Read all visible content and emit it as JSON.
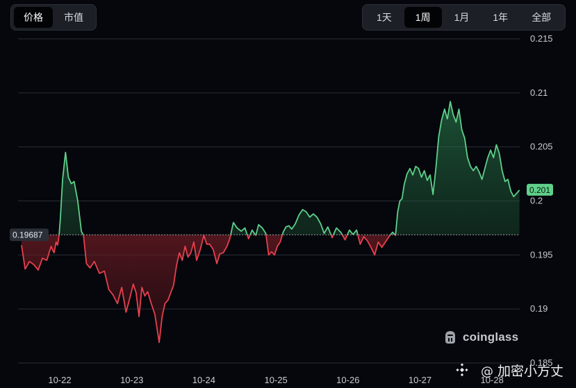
{
  "tabs_metric": [
    {
      "label": "价格",
      "active": true
    },
    {
      "label": "市值",
      "active": false
    }
  ],
  "tabs_range": [
    {
      "label": "1天",
      "active": false
    },
    {
      "label": "1周",
      "active": true
    },
    {
      "label": "1月",
      "active": false
    },
    {
      "label": "1年",
      "active": false
    },
    {
      "label": "全部",
      "active": false
    }
  ],
  "brand": {
    "name": "coinglass"
  },
  "watermark": {
    "at": "@",
    "text": "加密小方丈"
  },
  "colors": {
    "up": "#5fd08a",
    "down": "#e8404e",
    "background": "#05070c",
    "grid": "#2a2e36"
  },
  "chart_data": {
    "type": "area",
    "title": "",
    "xlabel": "",
    "ylabel": "",
    "ylim": [
      0.185,
      0.215
    ],
    "yticks": [
      0.185,
      0.19,
      0.195,
      0.2,
      0.205,
      0.21,
      0.215
    ],
    "ytick_labels": [
      "0.185",
      "0.19",
      "0.195",
      "0.2",
      "0.205",
      "0.21",
      "0.215"
    ],
    "xlim": [
      -0.5,
      6.5
    ],
    "xticks": [
      0,
      1,
      2,
      3,
      4,
      5,
      6
    ],
    "xtick_labels": [
      "10-22",
      "10-23",
      "10-24",
      "10-25",
      "10-26",
      "10-27",
      "10-28"
    ],
    "baseline": 0.19687,
    "baseline_label": "0.19687",
    "last_value": 0.201,
    "last_label": "0.201",
    "grid": true,
    "series": [
      {
        "x": [
          -0.53,
          -0.48,
          -0.42,
          -0.36,
          -0.3,
          -0.24,
          -0.18,
          -0.12,
          -0.08,
          -0.05,
          -0.03,
          -0.01,
          0.01,
          0.04,
          0.08,
          0.12,
          0.16,
          0.2,
          0.25,
          0.3,
          0.33,
          0.37,
          0.42,
          0.48,
          0.55,
          0.62,
          0.68,
          0.74,
          0.8,
          0.86,
          0.92,
          0.98,
          1.02,
          1.06,
          1.1,
          1.14,
          1.18,
          1.22,
          1.27,
          1.32,
          1.38,
          1.42,
          1.46,
          1.5,
          1.54,
          1.58,
          1.62,
          1.66,
          1.7,
          1.74,
          1.78,
          1.82,
          1.86,
          1.9,
          1.95,
          2.0,
          2.04,
          2.08,
          2.13,
          2.18,
          2.22,
          2.27,
          2.32,
          2.36,
          2.41,
          2.46,
          2.52,
          2.57,
          2.62,
          2.67,
          2.72,
          2.76,
          2.81,
          2.86,
          2.9,
          2.94,
          2.98,
          3.02,
          3.06,
          3.1,
          3.14,
          3.18,
          3.22,
          3.27,
          3.32,
          3.37,
          3.42,
          3.47,
          3.52,
          3.57,
          3.62,
          3.67,
          3.72,
          3.78,
          3.84,
          3.9,
          3.96,
          4.02,
          4.07,
          4.12,
          4.17,
          4.22,
          4.27,
          4.32,
          4.37,
          4.42,
          4.47,
          4.52,
          4.57,
          4.62,
          4.66,
          4.69,
          4.72,
          4.75,
          4.78,
          4.82,
          4.86,
          4.9,
          4.94,
          4.98,
          5.02,
          5.06,
          5.1,
          5.14,
          5.18,
          5.22,
          5.26,
          5.3,
          5.34,
          5.38,
          5.42,
          5.46,
          5.5,
          5.54,
          5.58,
          5.62,
          5.66,
          5.7,
          5.74,
          5.78,
          5.82,
          5.86,
          5.9,
          5.94,
          5.98,
          6.02,
          6.06,
          6.1,
          6.14,
          6.18,
          6.22,
          6.26,
          6.3,
          6.34,
          6.38
        ],
        "values": [
          0.1959,
          0.1937,
          0.1944,
          0.1941,
          0.1936,
          0.1947,
          0.1945,
          0.1958,
          0.1952,
          0.1962,
          0.1959,
          0.1968,
          0.1985,
          0.202,
          0.2045,
          0.2022,
          0.2016,
          0.2018,
          0.2,
          0.1972,
          0.1968,
          0.1942,
          0.1938,
          0.1944,
          0.1933,
          0.1935,
          0.1918,
          0.1913,
          0.1905,
          0.192,
          0.1897,
          0.1912,
          0.1923,
          0.1915,
          0.1893,
          0.192,
          0.1912,
          0.1916,
          0.1905,
          0.1895,
          0.1869,
          0.1893,
          0.1905,
          0.1908,
          0.1915,
          0.1922,
          0.194,
          0.1952,
          0.1945,
          0.1958,
          0.1948,
          0.1952,
          0.1962,
          0.1945,
          0.1955,
          0.1968,
          0.196,
          0.196,
          0.1955,
          0.1942,
          0.1951,
          0.1952,
          0.1958,
          0.1965,
          0.198,
          0.1975,
          0.1972,
          0.1975,
          0.1965,
          0.1973,
          0.1968,
          0.1978,
          0.1975,
          0.197,
          0.195,
          0.1953,
          0.195,
          0.1958,
          0.1962,
          0.1971,
          0.1976,
          0.1977,
          0.1974,
          0.1979,
          0.1987,
          0.1992,
          0.199,
          0.1985,
          0.1988,
          0.1985,
          0.1979,
          0.197,
          0.1976,
          0.1966,
          0.1975,
          0.1971,
          0.1964,
          0.1973,
          0.1969,
          0.1973,
          0.196,
          0.1967,
          0.1963,
          0.1957,
          0.195,
          0.1962,
          0.1957,
          0.1962,
          0.1967,
          0.1971,
          0.1968,
          0.199,
          0.2,
          0.2002,
          0.2015,
          0.2025,
          0.203,
          0.2024,
          0.2032,
          0.203,
          0.2022,
          0.2028,
          0.2019,
          0.2024,
          0.2006,
          0.203,
          0.206,
          0.2075,
          0.2085,
          0.2076,
          0.2092,
          0.208,
          0.2073,
          0.2085,
          0.2066,
          0.2058,
          0.204,
          0.2032,
          0.2028,
          0.2032,
          0.2027,
          0.202,
          0.203,
          0.204,
          0.2047,
          0.204,
          0.2052,
          0.2044,
          0.2028,
          0.2018,
          0.202,
          0.2009,
          0.2004,
          0.2007,
          0.201
        ]
      }
    ]
  }
}
